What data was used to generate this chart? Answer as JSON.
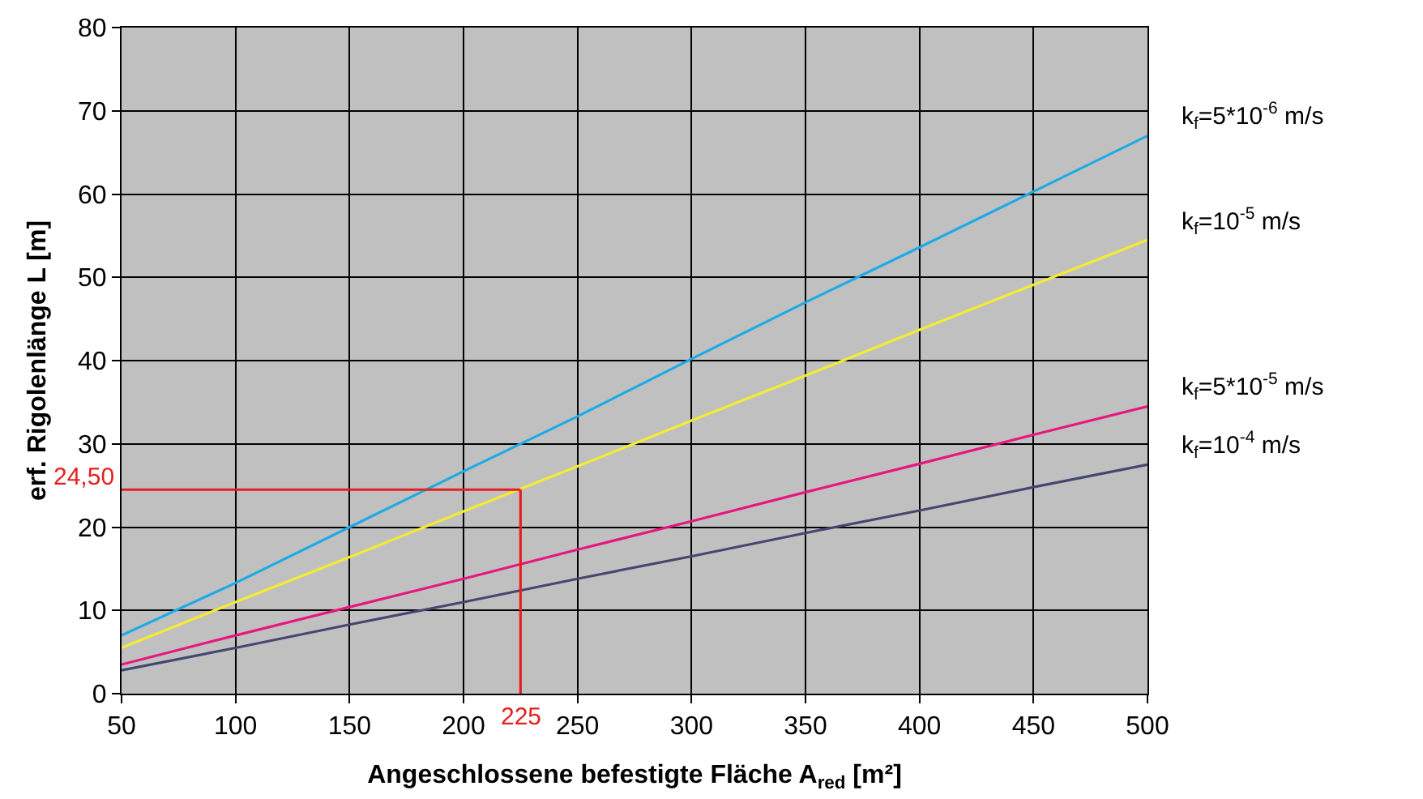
{
  "chart_data": {
    "type": "line",
    "xlabel": "Angeschlossene befestigte Fläche A$_{red}$ [m²]",
    "ylabel": "erf. Rigolenlänge L [m]",
    "x": [
      50,
      100,
      150,
      200,
      250,
      300,
      350,
      400,
      450,
      500
    ],
    "series": [
      {
        "name": "k$_{f}$=5*10$^{-6}$ m/s",
        "color": "#1eaae6",
        "values": [
          7,
          13.3,
          20,
          26.7,
          33.3,
          40.2,
          47,
          53.6,
          60.3,
          67
        ]
      },
      {
        "name": "k$_{f}$=10$^{-5}$ m/s",
        "color": "#f5eb32",
        "values": [
          5.5,
          11,
          16.4,
          21.9,
          27.3,
          32.8,
          38.2,
          43.7,
          49.1,
          54.5
        ]
      },
      {
        "name": "k$_{f}$=5*10$^{-5}$ m/s",
        "color": "#e6187d",
        "values": [
          3.5,
          7,
          10.4,
          13.8,
          17.3,
          20.7,
          24.2,
          27.6,
          31.1,
          34.5
        ]
      },
      {
        "name": "k$_{f}$=10$^{-4}$ m/s",
        "color": "#464673",
        "values": [
          2.8,
          5.5,
          8.3,
          11,
          13.8,
          16.5,
          19.3,
          22,
          24.8,
          27.5
        ]
      }
    ],
    "ref_lines": [
      {
        "axis": "y",
        "value": 24.5,
        "label": "24,50",
        "color": "#e61e1e"
      },
      {
        "axis": "x",
        "value": 225,
        "label": "225",
        "color": "#e61e1e"
      }
    ],
    "xlim": [
      50,
      500
    ],
    "xticks": [
      50,
      100,
      150,
      200,
      250,
      300,
      350,
      400,
      450,
      500
    ],
    "ylim": [
      0,
      80
    ],
    "yticks": [
      0,
      10,
      20,
      30,
      40,
      50,
      60,
      70,
      80
    ],
    "grid": true,
    "marker": "none",
    "line_style": "solid",
    "legend": false
  }
}
